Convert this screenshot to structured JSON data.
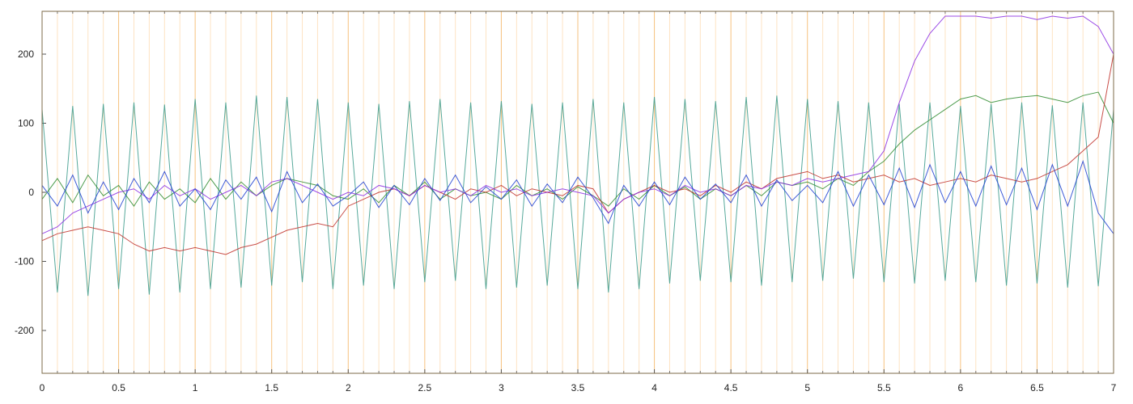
{
  "chart_data": {
    "type": "line",
    "xlim": [
      0,
      7
    ],
    "ylim": [
      -262,
      262
    ],
    "xticks": [
      0,
      0.5,
      1,
      1.5,
      2,
      2.5,
      3,
      3.5,
      4,
      4.5,
      5,
      5.5,
      6,
      6.5,
      7
    ],
    "xminorticks": [
      0.1,
      0.2,
      0.3,
      0.4,
      0.6,
      0.7,
      0.8,
      0.9,
      1.1,
      1.2,
      1.3,
      1.4,
      1.6,
      1.7,
      1.8,
      1.9,
      2.1,
      2.2,
      2.3,
      2.4,
      2.6,
      2.7,
      2.8,
      2.9,
      3.1,
      3.2,
      3.3,
      3.4,
      3.6,
      3.7,
      3.8,
      3.9,
      4.1,
      4.2,
      4.3,
      4.4,
      4.6,
      4.7,
      4.8,
      4.9,
      5.1,
      5.2,
      5.3,
      5.4,
      5.6,
      5.7,
      5.8,
      5.9,
      6.1,
      6.2,
      6.3,
      6.4,
      6.6,
      6.7,
      6.8,
      6.9
    ],
    "yticks": [
      -200,
      -100,
      0,
      100,
      200
    ],
    "grid": true,
    "x": [
      0,
      0.1,
      0.2,
      0.3,
      0.4,
      0.5,
      0.6,
      0.7,
      0.8,
      0.9,
      1,
      1.1,
      1.2,
      1.3,
      1.4,
      1.5,
      1.6,
      1.7,
      1.8,
      1.9,
      2,
      2.1,
      2.2,
      2.3,
      2.4,
      2.5,
      2.6,
      2.7,
      2.8,
      2.9,
      3,
      3.1,
      3.2,
      3.3,
      3.4,
      3.5,
      3.6,
      3.7,
      3.8,
      3.9,
      4,
      4.1,
      4.2,
      4.3,
      4.4,
      4.5,
      4.6,
      4.7,
      4.8,
      4.9,
      5,
      5.1,
      5.2,
      5.3,
      5.4,
      5.5,
      5.6,
      5.7,
      5.8,
      5.9,
      6,
      6.1,
      6.2,
      6.3,
      6.4,
      6.5,
      6.6,
      6.7,
      6.8,
      6.9,
      7
    ],
    "series": [
      {
        "color": "#3a9a8a",
        "values": [
          120,
          -145,
          125,
          -150,
          128,
          -140,
          130,
          -148,
          127,
          -145,
          135,
          -140,
          130,
          -138,
          140,
          -135,
          138,
          -130,
          135,
          -140,
          130,
          -135,
          128,
          -140,
          132,
          -130,
          135,
          -128,
          130,
          -140,
          132,
          -138,
          128,
          -135,
          130,
          -140,
          135,
          -145,
          130,
          -140,
          138,
          -132,
          135,
          -128,
          132,
          -130,
          138,
          -135,
          140,
          -130,
          135,
          -128,
          132,
          -125,
          130,
          -130,
          128,
          -132,
          130,
          -128,
          125,
          -130,
          128,
          -135,
          130,
          -132,
          126,
          -138,
          130,
          -136,
          120
        ]
      },
      {
        "color": "#2e8b2e",
        "values": [
          -10,
          20,
          -15,
          25,
          -5,
          10,
          -20,
          15,
          -10,
          5,
          -15,
          20,
          -10,
          15,
          -5,
          10,
          20,
          15,
          10,
          -5,
          -10,
          5,
          -15,
          10,
          -5,
          15,
          -10,
          5,
          -5,
          0,
          -10,
          10,
          -5,
          5,
          -10,
          8,
          -5,
          -20,
          5,
          -10,
          10,
          -5,
          8,
          -10,
          5,
          -5,
          10,
          -5,
          15,
          10,
          15,
          5,
          20,
          10,
          30,
          45,
          70,
          90,
          105,
          120,
          135,
          140,
          130,
          135,
          138,
          140,
          135,
          130,
          140,
          145,
          100
        ]
      },
      {
        "color": "#c0302a",
        "values": [
          -70,
          -60,
          -55,
          -50,
          -55,
          -60,
          -75,
          -85,
          -80,
          -85,
          -80,
          -85,
          -90,
          -80,
          -75,
          -65,
          -55,
          -50,
          -45,
          -50,
          -20,
          -10,
          0,
          5,
          -5,
          10,
          0,
          -10,
          5,
          0,
          10,
          -5,
          5,
          0,
          -5,
          10,
          5,
          -30,
          -10,
          0,
          10,
          0,
          5,
          -5,
          10,
          0,
          15,
          5,
          20,
          25,
          30,
          20,
          25,
          15,
          20,
          25,
          15,
          20,
          10,
          15,
          20,
          15,
          25,
          20,
          15,
          20,
          30,
          40,
          60,
          80,
          200
        ]
      },
      {
        "color": "#8a2be2",
        "values": [
          -60,
          -50,
          -30,
          -20,
          -10,
          0,
          5,
          -10,
          10,
          -5,
          5,
          -10,
          0,
          10,
          -5,
          15,
          20,
          10,
          0,
          -10,
          0,
          -5,
          10,
          5,
          -5,
          10,
          0,
          5,
          -5,
          10,
          0,
          5,
          -5,
          0,
          5,
          0,
          -5,
          -30,
          -10,
          0,
          5,
          -5,
          10,
          0,
          5,
          -5,
          10,
          5,
          15,
          10,
          20,
          15,
          20,
          25,
          30,
          60,
          130,
          190,
          230,
          255,
          255,
          255,
          252,
          255,
          255,
          250,
          255,
          252,
          255,
          240,
          200
        ]
      },
      {
        "color": "#1f3fd0",
        "values": [
          10,
          -20,
          25,
          -30,
          15,
          -25,
          20,
          -15,
          30,
          -20,
          5,
          -25,
          18,
          -10,
          22,
          -28,
          30,
          -15,
          12,
          -20,
          -5,
          15,
          -22,
          10,
          -18,
          20,
          -12,
          25,
          -15,
          8,
          -10,
          18,
          -20,
          12,
          -15,
          22,
          -8,
          -45,
          10,
          -20,
          15,
          -18,
          22,
          -10,
          12,
          -15,
          25,
          -20,
          18,
          -12,
          10,
          -15,
          30,
          -20,
          25,
          -18,
          35,
          -22,
          40,
          -15,
          30,
          -20,
          38,
          -18,
          35,
          -25,
          40,
          -20,
          45,
          -30,
          -60
        ]
      }
    ]
  }
}
